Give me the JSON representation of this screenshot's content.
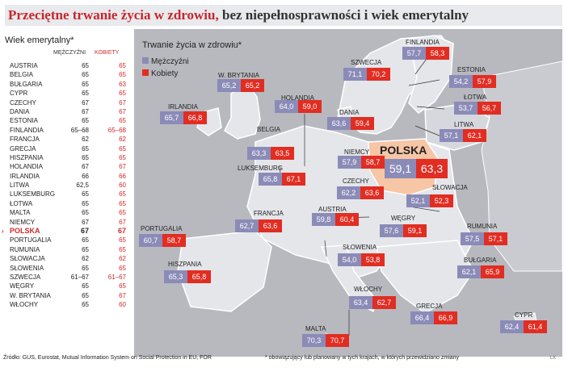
{
  "title_highlight": "Przeciętne trwanie życia w zdrowiu,",
  "title_rest": " bez niepełnosprawności i wiek emerytalny",
  "retirement": {
    "title": "Wiek emerytalny*",
    "col_m": "MĘŻCZYŹNI",
    "col_k": "KOBIETY",
    "rows": [
      {
        "c": "AUSTRIA",
        "m": "65",
        "k": "65"
      },
      {
        "c": "BELGIA",
        "m": "65",
        "k": "65"
      },
      {
        "c": "BUŁGARIA",
        "m": "65",
        "k": "63"
      },
      {
        "c": "CYPR",
        "m": "65",
        "k": "65"
      },
      {
        "c": "CZECHY",
        "m": "67",
        "k": "67"
      },
      {
        "c": "DANIA",
        "m": "67",
        "k": "67"
      },
      {
        "c": "ESTONIA",
        "m": "65",
        "k": "65"
      },
      {
        "c": "FINLANDIA",
        "m": "65–68",
        "k": "65–68"
      },
      {
        "c": "FRANCJA",
        "m": "62",
        "k": "62"
      },
      {
        "c": "GRECJA",
        "m": "65",
        "k": "65"
      },
      {
        "c": "HISZPANIA",
        "m": "65",
        "k": "65"
      },
      {
        "c": "HOLANDIA",
        "m": "67",
        "k": "67"
      },
      {
        "c": "IRLANDIA",
        "m": "66",
        "k": "66"
      },
      {
        "c": "LITWA",
        "m": "62,5",
        "k": "60"
      },
      {
        "c": "LUKSEMBURG",
        "m": "65",
        "k": "65"
      },
      {
        "c": "ŁOTWA",
        "m": "65",
        "k": "65"
      },
      {
        "c": "MALTA",
        "m": "65",
        "k": "65"
      },
      {
        "c": "NIEMCY",
        "m": "67",
        "k": "67"
      },
      {
        "c": "POLSKA",
        "m": "67",
        "k": "67"
      },
      {
        "c": "PORTUGALIA",
        "m": "65",
        "k": "65"
      },
      {
        "c": "RUMUNIA",
        "m": "65",
        "k": "65"
      },
      {
        "c": "SŁOWACJA",
        "m": "62",
        "k": "62"
      },
      {
        "c": "SŁOWENIA",
        "m": "65",
        "k": "65"
      },
      {
        "c": "SZWECJA",
        "m": "61–67",
        "k": "61–67"
      },
      {
        "c": "WĘGRY",
        "m": "65",
        "k": "65"
      },
      {
        "c": "W. BRYTANIA",
        "m": "65",
        "k": "67"
      },
      {
        "c": "WŁOCHY",
        "m": "65",
        "k": "60"
      }
    ]
  },
  "legend": {
    "title": "Trwanie życia w zdrowiu*",
    "m": "Mężczyźni",
    "k": "Kobiety",
    "color_m": "#8b8bb8",
    "color_k": "#e12d22"
  },
  "chart_data": {
    "type": "table",
    "title": "Trwanie życia w zdrowiu*",
    "series": [
      {
        "name": "Mężczyźni"
      },
      {
        "name": "Kobiety"
      }
    ],
    "countries": [
      {
        "name": "FINLANDIA",
        "m": "57,7",
        "k": "58,3"
      },
      {
        "name": "SZWECJA",
        "m": "71,1",
        "k": "70,2"
      },
      {
        "name": "ESTONIA",
        "m": "54,2",
        "k": "57,9"
      },
      {
        "name": "ŁOTWA",
        "m": "53,7",
        "k": "56,7"
      },
      {
        "name": "W. BRYTANIA",
        "m": "65,2",
        "k": "65,2"
      },
      {
        "name": "HOLANDIA",
        "m": "64,0",
        "k": "59,0"
      },
      {
        "name": "IRLANDIA",
        "m": "65,7",
        "k": "66,8"
      },
      {
        "name": "DANIA",
        "m": "63,6",
        "k": "59,4"
      },
      {
        "name": "LITWA",
        "m": "57,1",
        "k": "62,1"
      },
      {
        "name": "BELGIA",
        "m": "63,3",
        "k": "63,5"
      },
      {
        "name": "NIEMCY",
        "m": "57,9",
        "k": "58,7"
      },
      {
        "name": "POLSKA",
        "m": "59,1",
        "k": "63,3"
      },
      {
        "name": "LUKSEMBURG",
        "m": "65,8",
        "k": "67,1"
      },
      {
        "name": "CZECHY",
        "m": "62,2",
        "k": "63,6"
      },
      {
        "name": "SŁOWACJA",
        "m": "52,1",
        "k": "52,3"
      },
      {
        "name": "FRANCJA",
        "m": "62,7",
        "k": "63,6"
      },
      {
        "name": "AUSTRIA",
        "m": "59,8",
        "k": "60,4"
      },
      {
        "name": "WĘGRY",
        "m": "57,6",
        "k": "59,1"
      },
      {
        "name": "RUMUNIA",
        "m": "57,5",
        "k": "57,1"
      },
      {
        "name": "PORTUGALIA",
        "m": "60,7",
        "k": "58,7"
      },
      {
        "name": "SŁOWENIA",
        "m": "54,0",
        "k": "53,8"
      },
      {
        "name": "BUŁGARIA",
        "m": "62,1",
        "k": "65,9"
      },
      {
        "name": "HISZPANIA",
        "m": "65,3",
        "k": "65,8"
      },
      {
        "name": "WŁOCHY",
        "m": "63,4",
        "k": "62,7"
      },
      {
        "name": "GRECJA",
        "m": "66,4",
        "k": "66,9"
      },
      {
        "name": "CYPR",
        "m": "62,4",
        "k": "61,4"
      },
      {
        "name": "MALTA",
        "m": "70,3",
        "k": "70,7"
      }
    ]
  },
  "source": "Źródło: GUS, Eurostat, Mutual Information System on Social Protection in EU, FOR",
  "note": "* obowiązujący lub planowany w tych krajach, w których przewidziano zmiany",
  "author": "LK"
}
